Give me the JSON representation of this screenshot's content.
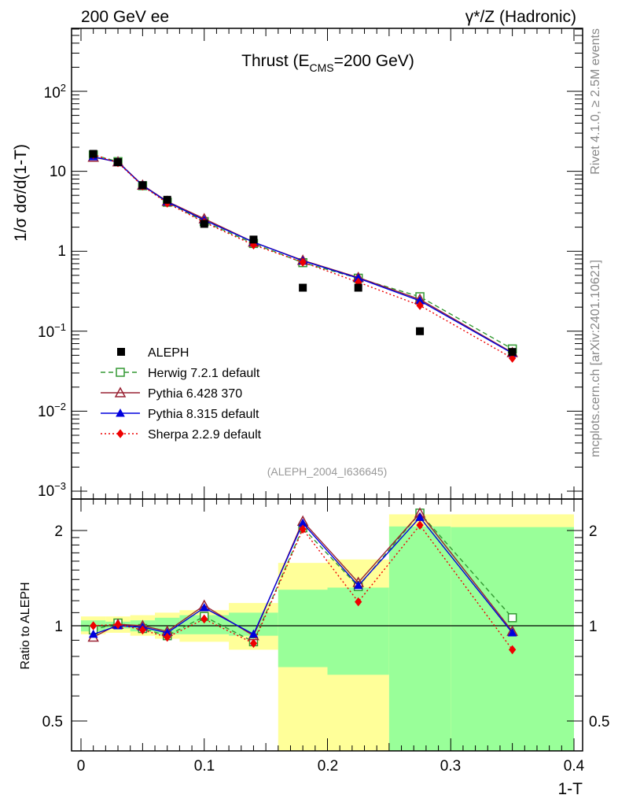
{
  "header": {
    "left": "200 GeV ee",
    "right": "γ*/Z (Hadronic)"
  },
  "side_labels": {
    "rivet": "Rivet 4.1.0, ≥ 2.5M events",
    "mcplots": "mcplots.cern.ch [arXiv:2401.10621]"
  },
  "chart_data": {
    "type": "line",
    "title": "Thrust (E_CMS=200 GeV)",
    "title_parts": {
      "pre": "Thrust (E",
      "sub": "CMS",
      "post": "=200 GeV)"
    },
    "analysis_id": "(ALEPH_2004_I636645)",
    "xlabel": "1-T",
    "ylabel": "1/σ  dσ/d(1-T)",
    "ratio_ylabel": "Ratio to ALEPH",
    "xlim": [
      0,
      0.4
    ],
    "ylim": [
      0.001,
      600
    ],
    "ratio_ylim": [
      0.4,
      2.5
    ],
    "yscale": "log",
    "x_ticks": [
      "0",
      "0.1",
      "0.2",
      "0.3",
      "0.4"
    ],
    "y_ticks": [
      "10^-3",
      "10^-2",
      "10^-1",
      "1",
      "10",
      "10^2"
    ],
    "ratio_ticks": [
      "0.5",
      "1",
      "2"
    ],
    "x": [
      0.01,
      0.03,
      0.05,
      0.07,
      0.1,
      0.14,
      0.18,
      0.225,
      0.275,
      0.35
    ],
    "bins": [
      [
        0.0,
        0.02
      ],
      [
        0.02,
        0.04
      ],
      [
        0.04,
        0.06
      ],
      [
        0.06,
        0.08
      ],
      [
        0.08,
        0.12
      ],
      [
        0.12,
        0.16
      ],
      [
        0.16,
        0.2
      ],
      [
        0.2,
        0.25
      ],
      [
        0.25,
        0.3
      ],
      [
        0.3,
        0.4
      ]
    ],
    "data": {
      "name": "ALEPH",
      "values": [
        16.5,
        13.0,
        6.7,
        4.4,
        2.2,
        1.4,
        0.35,
        0.35,
        0.1,
        0.055
      ]
    },
    "series": [
      {
        "name": "Herwig 7.2.1 default",
        "color": "#339933",
        "style": "dashed",
        "marker": "open-square",
        "values": [
          16.0,
          13.2,
          6.6,
          4.1,
          2.35,
          1.25,
          0.72,
          0.46,
          0.27,
          0.06
        ],
        "ratio": [
          0.97,
          1.02,
          0.98,
          0.93,
          1.07,
          0.89,
          2.04,
          1.33,
          2.27,
          1.06
        ]
      },
      {
        "name": "Pythia 6.428 370",
        "color": "#992233",
        "style": "solid",
        "marker": "open-triangle",
        "values": [
          15.0,
          13.1,
          6.7,
          4.2,
          2.55,
          1.3,
          0.77,
          0.47,
          0.25,
          0.054
        ],
        "ratio": [
          0.92,
          1.01,
          1.0,
          0.96,
          1.16,
          0.93,
          2.14,
          1.37,
          2.27,
          0.96
        ]
      },
      {
        "name": "Pythia 8.315 default",
        "color": "#0000dd",
        "style": "solid",
        "marker": "filled-triangle",
        "values": [
          15.2,
          13.0,
          6.65,
          4.15,
          2.45,
          1.3,
          0.76,
          0.46,
          0.24,
          0.053
        ],
        "ratio": [
          0.94,
          1.0,
          0.99,
          0.95,
          1.14,
          0.94,
          2.11,
          1.34,
          2.2,
          0.95
        ]
      },
      {
        "name": "Sherpa 2.2.9 default",
        "color": "#ee0000",
        "style": "dotted",
        "marker": "filled-diamond",
        "values": [
          16.2,
          12.8,
          6.55,
          4.0,
          2.3,
          1.2,
          0.73,
          0.41,
          0.21,
          0.046
        ],
        "ratio": [
          1.0,
          1.01,
          0.97,
          0.92,
          1.05,
          0.88,
          2.02,
          1.19,
          2.08,
          0.84
        ]
      }
    ],
    "uncertainty_bands": {
      "inner_color": "#99ff99",
      "outer_color": "#ffff99",
      "inner": [
        [
          0.96,
          1.04
        ],
        [
          0.98,
          1.03
        ],
        [
          0.96,
          1.04
        ],
        [
          0.94,
          1.06
        ],
        [
          0.94,
          1.08
        ],
        [
          0.93,
          1.1
        ],
        [
          0.74,
          1.3
        ],
        [
          0.7,
          1.32
        ],
        [
          0.35,
          2.06
        ],
        [
          0.35,
          2.05
        ]
      ],
      "outer": [
        [
          0.94,
          1.07
        ],
        [
          0.95,
          1.07
        ],
        [
          0.93,
          1.08
        ],
        [
          0.91,
          1.1
        ],
        [
          0.89,
          1.12
        ],
        [
          0.84,
          1.18
        ],
        [
          0.36,
          1.58
        ],
        [
          0.36,
          1.62
        ],
        [
          0.35,
          2.25
        ],
        [
          0.35,
          2.25
        ]
      ]
    }
  }
}
